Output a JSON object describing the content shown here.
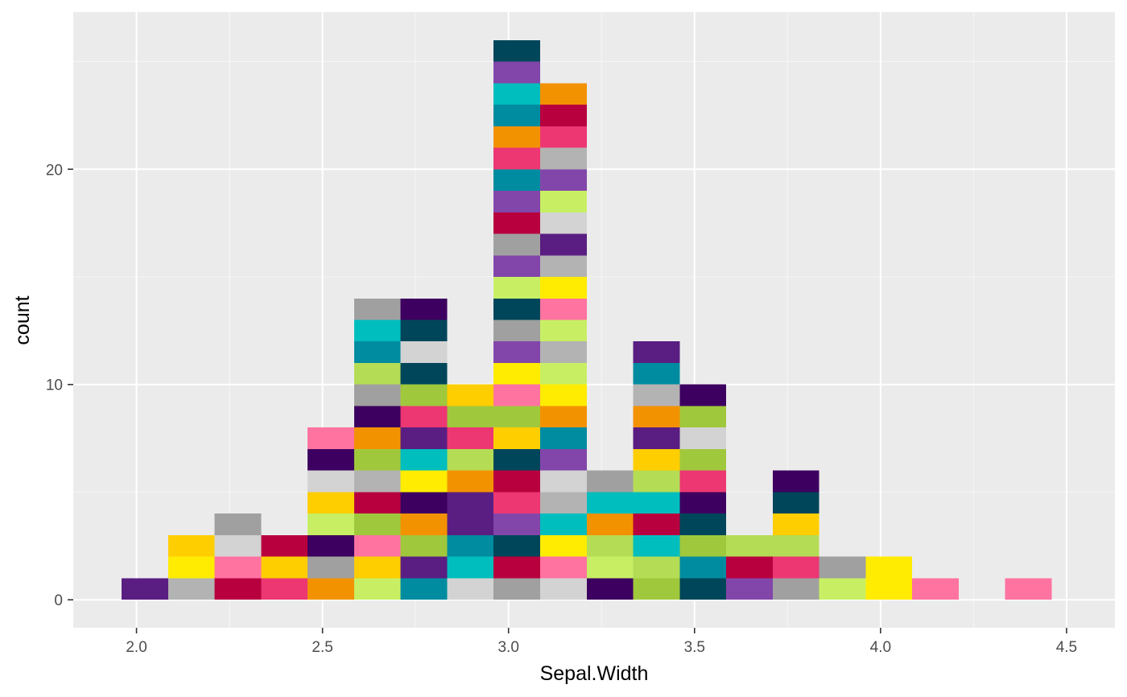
{
  "chart_data": {
    "type": "bar",
    "subtype": "histogram",
    "title": "",
    "xlabel": "Sepal.Width",
    "ylabel": "count",
    "xlim": [
      1.83,
      4.63
    ],
    "ylim": [
      -1.3,
      27.3
    ],
    "grid": true,
    "legend": "none",
    "x_ticks": [
      {
        "value": 2.0,
        "label": "2.0"
      },
      {
        "value": 2.5,
        "label": "2.5"
      },
      {
        "value": 3.0,
        "label": "3.0"
      },
      {
        "value": 3.5,
        "label": "3.5"
      },
      {
        "value": 4.0,
        "label": "4.0"
      },
      {
        "value": 4.5,
        "label": "4.5"
      }
    ],
    "y_ticks": [
      {
        "value": 0,
        "label": "0"
      },
      {
        "value": 10,
        "label": "10"
      },
      {
        "value": 20,
        "label": "20"
      }
    ],
    "bin_width": 0.125,
    "bins": [
      {
        "x": 2.0225,
        "count": 1
      },
      {
        "x": 2.1475,
        "count": 3
      },
      {
        "x": 2.2725,
        "count": 4
      },
      {
        "x": 2.3975,
        "count": 3
      },
      {
        "x": 2.5225,
        "count": 8
      },
      {
        "x": 2.6475,
        "count": 14
      },
      {
        "x": 2.7725,
        "count": 14
      },
      {
        "x": 2.8975,
        "count": 10
      },
      {
        "x": 3.0225,
        "count": 26
      },
      {
        "x": 3.1475,
        "count": 24
      },
      {
        "x": 3.2725,
        "count": 6
      },
      {
        "x": 3.3975,
        "count": 12
      },
      {
        "x": 3.5225,
        "count": 10
      },
      {
        "x": 3.6475,
        "count": 3
      },
      {
        "x": 3.7725,
        "count": 6
      },
      {
        "x": 3.8975,
        "count": 2
      },
      {
        "x": 4.0225,
        "count": 2
      },
      {
        "x": 4.1475,
        "count": 1
      },
      {
        "x": 4.2725,
        "count": 0
      },
      {
        "x": 4.3975,
        "count": 1
      }
    ],
    "colors": {
      "panel_background": "#EBEBEB",
      "grid_major": "#FFFFFF",
      "tick_text": "#4D4D4D",
      "palette": [
        "#5A1E82",
        "#B3B3B3",
        "#B8003F",
        "#EC3772",
        "#F39200",
        "#C8EF64",
        "#008CA0",
        "#D3D3D3",
        "#A0A0A0",
        "#3D0060",
        "#FFEC00",
        "#FFCE00",
        "#FF73A0",
        "#A0C83C",
        "#00BEBE",
        "#00465A",
        "#8246AA",
        "#B4DC55"
      ]
    },
    "cell_colors": [
      [
        "#5A1E82"
      ],
      [
        "#B3B3B3",
        "#FFEC00",
        "#FFCE00"
      ],
      [
        "#B8003F",
        "#FF73A0",
        "#D3D3D3",
        "#A0A0A0"
      ],
      [
        "#EC3772",
        "#FFCE00",
        "#B8003F"
      ],
      [
        "#F39200",
        "#A0A0A0",
        "#3D0060",
        "#C8EF64",
        "#FFCE00",
        "#D3D3D3",
        "#3D0060",
        "#FF73A0"
      ],
      [
        "#C8EF64",
        "#FFCE00",
        "#FF73A0",
        "#A0C83C",
        "#B8003F",
        "#B3B3B3",
        "#A0C83C",
        "#F39200",
        "#3D0060",
        "#A0A0A0",
        "#B4DC55",
        "#008CA0",
        "#00BEBE",
        "#A0A0A0"
      ],
      [
        "#008CA0",
        "#5A1E82",
        "#A0C83C",
        "#F39200",
        "#3D0060",
        "#FFEC00",
        "#00BEBE",
        "#5A1E82",
        "#EC3772",
        "#A0C83C",
        "#00465A",
        "#D3D3D3",
        "#00465A",
        "#3D0060"
      ],
      [
        "#D3D3D3",
        "#00BEBE",
        "#008CA0",
        "#5A1E82",
        "#5A1E82",
        "#F39200",
        "#B4DC55",
        "#EC3772",
        "#A0C83C",
        "#FFCE00"
      ],
      [
        "#A0A0A0",
        "#B8003F",
        "#00465A",
        "#8246AA",
        "#EC3772",
        "#B8003F",
        "#00465A",
        "#FFCE00",
        "#A0C83C",
        "#FF73A0",
        "#FFEC00",
        "#8246AA",
        "#A0A0A0",
        "#00465A",
        "#C8EF64",
        "#8246AA",
        "#A0A0A0",
        "#B8003F",
        "#8246AA",
        "#008CA0",
        "#EC3772",
        "#F39200",
        "#008CA0",
        "#00BEBE",
        "#8246AA",
        "#00465A"
      ],
      [
        "#D3D3D3",
        "#FF73A0",
        "#FFEC00",
        "#00BEBE",
        "#B3B3B3",
        "#D3D3D3",
        "#8246AA",
        "#008CA0",
        "#F39200",
        "#FFEC00",
        "#C8EF64",
        "#B3B3B3",
        "#C8EF64",
        "#FF73A0",
        "#FFEC00",
        "#B3B3B3",
        "#5A1E82",
        "#D3D3D3",
        "#C8EF64",
        "#8246AA",
        "#B3B3B3",
        "#EC3772",
        "#B8003F",
        "#F39200"
      ],
      [
        "#3D0060",
        "#C8EF64",
        "#B4DC55",
        "#F39200",
        "#00BEBE",
        "#A0A0A0"
      ],
      [
        "#A0C83C",
        "#B4DC55",
        "#00BEBE",
        "#B8003F",
        "#00BEBE",
        "#B4DC55",
        "#FFCE00",
        "#5A1E82",
        "#F39200",
        "#B3B3B3",
        "#008CA0",
        "#5A1E82"
      ],
      [
        "#00465A",
        "#008CA0",
        "#A0C83C",
        "#00465A",
        "#3D0060",
        "#EC3772",
        "#A0C83C",
        "#D3D3D3",
        "#A0C83C",
        "#3D0060"
      ],
      [
        "#8246AA",
        "#B8003F",
        "#B4DC55"
      ],
      [
        "#A0A0A0",
        "#EC3772",
        "#B4DC55",
        "#FFCE00",
        "#00465A",
        "#3D0060"
      ],
      [
        "#C8EF64",
        "#A0A0A0"
      ],
      [
        "#FFEC00",
        "#FFEC00"
      ],
      [
        "#FF73A0"
      ],
      [],
      [
        "#FF73A0"
      ]
    ]
  }
}
